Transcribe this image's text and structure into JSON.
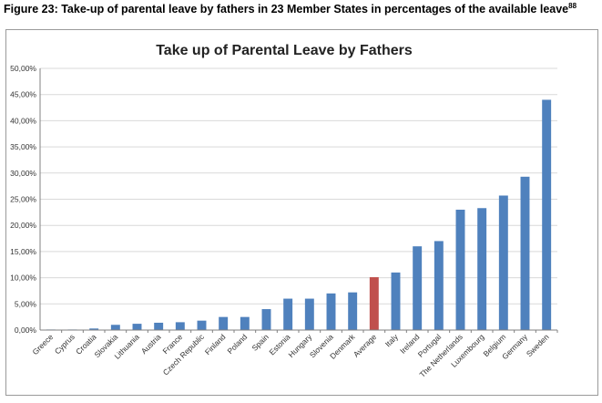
{
  "figure": {
    "caption": "Figure 23: Take-up of parental leave by fathers in 23 Member States in percentages of the available leave",
    "footnote_ref": "88"
  },
  "colors": {
    "bar": "#4f81bd",
    "highlight": "#c0504d",
    "grid": "#d9d9d9",
    "axis": "#808080"
  },
  "chart_data": {
    "type": "bar",
    "title": "Take up of Parental Leave by Fathers",
    "xlabel": "",
    "ylabel": "",
    "ylim": [
      0,
      50
    ],
    "y_ticks": [
      "0,00%",
      "5,00%",
      "10,00%",
      "15,00%",
      "20,00%",
      "25,00%",
      "30,00%",
      "35,00%",
      "40,00%",
      "45,00%",
      "50,00%"
    ],
    "grid": true,
    "categories": [
      "Greece",
      "Cyprus",
      "Croatia",
      "Slovakia",
      "Lithuania",
      "Austria",
      "France",
      "Czech Republic",
      "Finland",
      "Poland",
      "Spain",
      "Estonia",
      "Hungary",
      "Slovenia",
      "Denmark",
      "Average",
      "Italy",
      "Ireland",
      "Portugal",
      "The Netherlands",
      "Luxembourg",
      "Belgium",
      "Germany",
      "Sweden"
    ],
    "values": [
      0.1,
      0.1,
      0.3,
      1.0,
      1.2,
      1.4,
      1.5,
      1.8,
      2.5,
      2.5,
      4.0,
      6.0,
      6.0,
      7.0,
      7.2,
      10.1,
      11.0,
      16.0,
      17.0,
      23.0,
      23.3,
      25.7,
      29.3,
      44.0
    ],
    "highlighted_category": "Average"
  }
}
